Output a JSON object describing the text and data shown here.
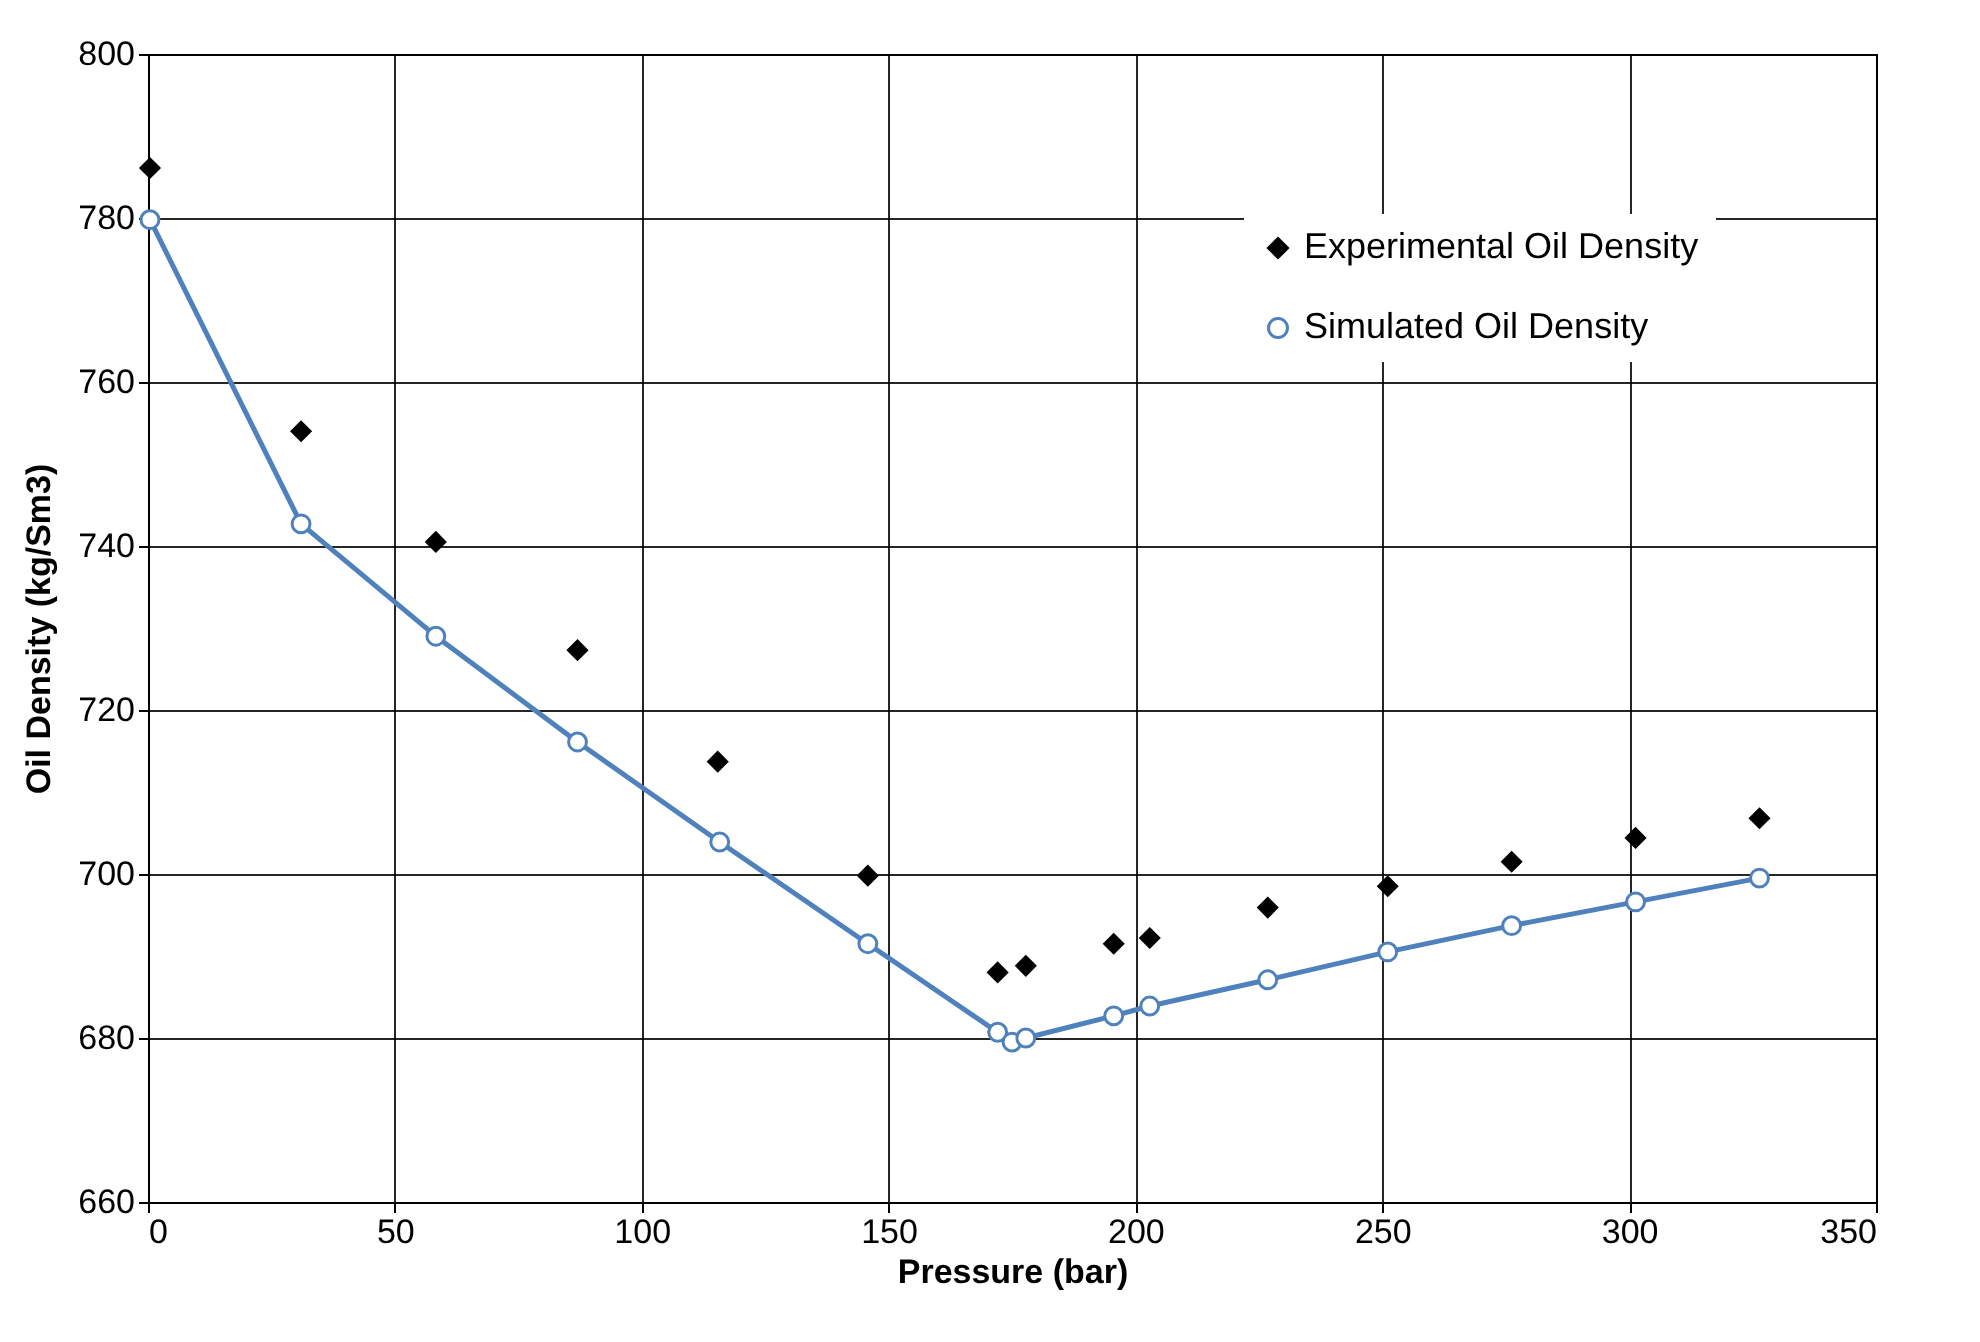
{
  "chart_data": {
    "type": "scatter",
    "xlabel": "Pressure (bar)",
    "ylabel": "Oil Density (kg/Sm3)",
    "xlim": [
      0,
      350
    ],
    "xticks": [
      0,
      50,
      100,
      150,
      200,
      250,
      300,
      350
    ],
    "ylim": [
      660,
      800
    ],
    "yticks": [
      660,
      680,
      700,
      720,
      740,
      760,
      780,
      800
    ],
    "grid": true,
    "legend": "top right",
    "series": [
      {
        "name": "Experimental Oil Density",
        "type": "scatter",
        "marker": "diamond",
        "color": "#000000",
        "x": [
          0.4,
          31,
          58.3,
          87,
          115.4,
          145.8,
          172.1,
          177.8,
          195.6,
          202.9,
          226.8,
          251.1,
          276.2,
          301.3,
          326.4
        ],
        "values": [
          786.1,
          754,
          740.5,
          727.3,
          713.7,
          699.8,
          688,
          688.8,
          691.5,
          692.2,
          695.9,
          698.5,
          701.5,
          704.4,
          706.8
        ]
      },
      {
        "name": "Simulated Oil Density",
        "type": "line",
        "marker": "circle",
        "color": "#4f81bd",
        "x": [
          0.4,
          31,
          58.3,
          87,
          115.8,
          145.8,
          172.1,
          175,
          177.8,
          195.6,
          202.9,
          226.8,
          251.1,
          276.2,
          301.3,
          326.4
        ],
        "values": [
          779.8,
          742.7,
          729,
          716.1,
          703.9,
          691.5,
          680.7,
          679.5,
          680,
          682.7,
          683.9,
          687.1,
          690.5,
          693.7,
          696.6,
          699.5
        ]
      }
    ]
  }
}
